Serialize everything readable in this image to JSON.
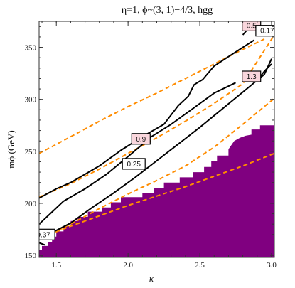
{
  "chart_data": {
    "type": "contour",
    "title": "η=1, ϕ~(3, 1)−4/3, hgg",
    "xlabel": "κ",
    "ylabel": "mϕ (GeV)",
    "xlim": [
      1.38,
      3.02
    ],
    "ylim": [
      148,
      375
    ],
    "xticks": [
      1.5,
      2.0,
      2.5,
      3.0
    ],
    "xtick_labels": [
      "1.5",
      "2.0",
      "2.5",
      "3.0"
    ],
    "yticks": [
      150,
      200,
      250,
      300,
      350
    ],
    "ytick_labels": [
      "150",
      "200",
      "250",
      "300",
      "350"
    ],
    "excluded_region": {
      "color": "#800080",
      "boundary": [
        [
          1.38,
          155
        ],
        [
          1.4,
          155
        ],
        [
          1.4,
          159
        ],
        [
          1.44,
          159
        ],
        [
          1.44,
          163
        ],
        [
          1.47,
          163
        ],
        [
          1.47,
          168
        ],
        [
          1.5,
          168
        ],
        [
          1.5,
          173
        ],
        [
          1.55,
          173
        ],
        [
          1.55,
          178
        ],
        [
          1.6,
          178
        ],
        [
          1.6,
          183
        ],
        [
          1.65,
          183
        ],
        [
          1.65,
          187
        ],
        [
          1.72,
          187
        ],
        [
          1.72,
          192
        ],
        [
          1.82,
          192
        ],
        [
          1.82,
          196
        ],
        [
          1.88,
          196
        ],
        [
          1.88,
          201
        ],
        [
          1.95,
          201
        ],
        [
          1.95,
          206
        ],
        [
          2.1,
          206
        ],
        [
          2.1,
          210
        ],
        [
          2.18,
          210
        ],
        [
          2.18,
          215
        ],
        [
          2.25,
          215
        ],
        [
          2.25,
          220
        ],
        [
          2.36,
          220
        ],
        [
          2.36,
          225
        ],
        [
          2.45,
          225
        ],
        [
          2.45,
          230
        ],
        [
          2.53,
          230
        ],
        [
          2.53,
          235
        ],
        [
          2.58,
          235
        ],
        [
          2.58,
          241
        ],
        [
          2.62,
          241
        ],
        [
          2.62,
          246
        ],
        [
          2.7,
          246
        ],
        [
          2.7,
          252
        ],
        [
          2.72,
          256
        ],
        [
          2.74,
          260
        ],
        [
          2.78,
          263
        ],
        [
          2.82,
          265
        ],
        [
          2.86,
          266
        ],
        [
          2.86,
          271
        ],
        [
          2.92,
          271
        ],
        [
          2.92,
          275
        ],
        [
          3.02,
          275
        ],
        [
          3.02,
          148
        ],
        [
          1.38,
          148
        ]
      ]
    },
    "dashed_curves": {
      "color": "#ff8c00",
      "series": [
        {
          "x": [
            1.38,
            1.6,
            1.8,
            2.0,
            2.2,
            2.4,
            2.6,
            2.8,
            2.95
          ],
          "y": [
            248,
            264,
            279,
            293,
            306,
            320,
            334,
            348,
            358
          ]
        },
        {
          "x": [
            1.38,
            1.6,
            1.8,
            2.0,
            2.2,
            2.4,
            2.6,
            2.8,
            3.02
          ],
          "y": [
            206,
            219,
            233,
            248,
            263,
            279,
            296,
            315,
            362
          ]
        },
        {
          "x": [
            1.38,
            1.6,
            1.8,
            2.0,
            2.2,
            2.4,
            2.6,
            2.8,
            3.02
          ],
          "y": [
            165,
            180,
            195,
            209,
            222,
            236,
            254,
            276,
            301
          ]
        },
        {
          "x": [
            1.45,
            1.6,
            1.8,
            2.0,
            2.2,
            2.4,
            2.6,
            2.8,
            3.02
          ],
          "y": [
            170,
            178,
            188,
            198,
            207,
            216,
            226,
            236,
            248
          ]
        }
      ]
    },
    "contours": [
      {
        "label": "0.17",
        "x": [
          1.38,
          1.5,
          1.6,
          1.7,
          1.8,
          1.95,
          2.1,
          2.25,
          2.35,
          2.42,
          2.46,
          2.52,
          2.6,
          2.7,
          2.8,
          2.88
        ],
        "y": [
          205,
          214,
          220,
          228,
          236,
          251,
          264,
          276,
          294,
          303,
          314,
          319,
          332,
          341,
          350,
          357
        ]
      },
      {
        "label": "0.9",
        "x": [
          1.38,
          1.45,
          1.55,
          1.7,
          1.85,
          2.0,
          2.12,
          2.15,
          2.3,
          2.45,
          2.6,
          2.75
        ],
        "y": [
          180,
          189,
          202,
          214,
          228,
          245,
          259,
          263,
          276,
          291,
          306,
          316
        ]
      },
      {
        "label": "0.25",
        "x": [
          1.44,
          1.5,
          1.6,
          1.75,
          1.9,
          2.05,
          2.2,
          2.35,
          2.5,
          2.65,
          2.8,
          2.95,
          3.0
        ],
        "y": [
          170,
          174,
          181,
          196,
          210,
          225,
          241,
          257,
          273,
          290,
          307,
          324,
          339
        ]
      },
      {
        "label": "1.3",
        "x": [
          2.9,
          2.95,
          3.0
        ],
        "y": [
          318,
          327,
          334
        ]
      },
      {
        "label": "0.5",
        "x": [
          2.8,
          2.85
        ],
        "y": [
          362,
          370
        ]
      },
      {
        "label": "0.37",
        "x": [
          1.38,
          1.42
        ],
        "y": [
          162,
          160
        ]
      }
    ],
    "contour_labels": [
      {
        "text": "0.5",
        "x": 2.86,
        "y": 371,
        "style": "pink"
      },
      {
        "text": "0.17",
        "x": 2.97,
        "y": 366,
        "style": "white"
      },
      {
        "text": "1.3",
        "x": 2.86,
        "y": 322,
        "style": "pink"
      },
      {
        "text": "0.9",
        "x": 2.09,
        "y": 262,
        "style": "pink"
      },
      {
        "text": "0.25",
        "x": 2.04,
        "y": 238,
        "style": "white"
      },
      {
        "text": "0.37",
        "x": 1.41,
        "y": 170,
        "style": "white"
      }
    ],
    "grid": false,
    "legend": "none"
  }
}
